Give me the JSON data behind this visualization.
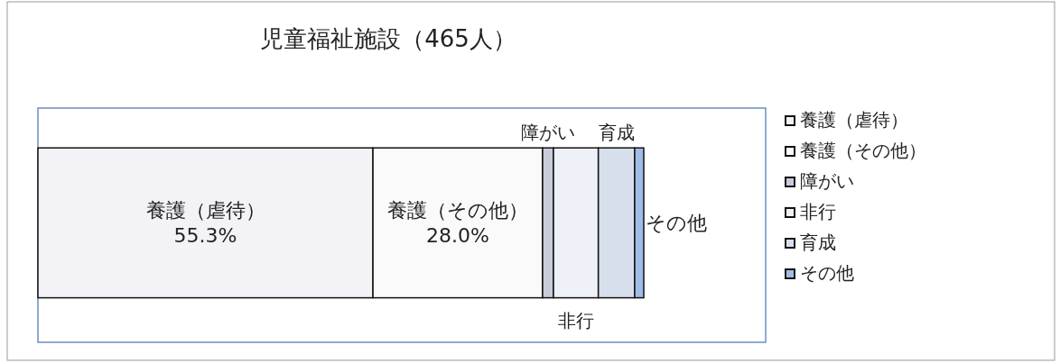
{
  "chart_data": {
    "type": "bar",
    "title": "児童福祉施設（465人）",
    "orientation": "horizontal",
    "stacked": true,
    "categories": [
      null
    ],
    "legend": "right",
    "series": [
      {
        "name": "養護（虐待）",
        "color": "#f2f2f7",
        "values": [
          55.3
        ],
        "value_labels": [
          "55.3%"
        ]
      },
      {
        "name": "養護（その他）",
        "color": "#fafafa",
        "values": [
          28.0
        ],
        "value_labels": [
          "28.0%"
        ]
      },
      {
        "name": "障がい",
        "color": "#c8ccd8",
        "values": [
          1.8
        ]
      },
      {
        "name": "非行",
        "color": "#eef2f8",
        "values": [
          7.4
        ]
      },
      {
        "name": "育成",
        "color": "#d8dfec",
        "values": [
          6.0
        ]
      },
      {
        "name": "その他",
        "color": "#9fbde6",
        "values": [
          1.5
        ]
      }
    ]
  }
}
